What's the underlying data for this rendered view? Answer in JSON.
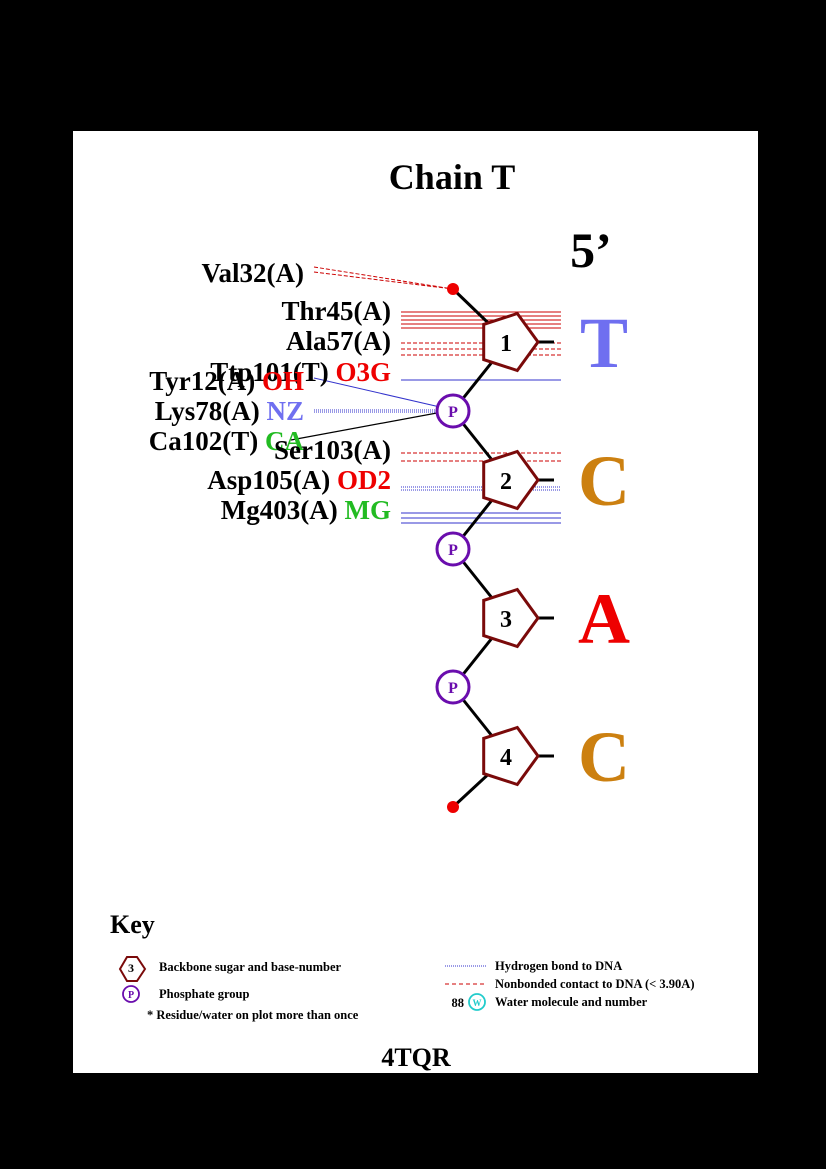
{
  "title": "Chain T",
  "end_label": "5’",
  "footer": "4TQR",
  "colors": {
    "sugar": "#7a0a0a",
    "phosphate": "#6a0dad",
    "hbond": "#3333cc",
    "nonbonded": "#cc0000",
    "terminal": "#ee0000",
    "base_T": "#6f6ff0",
    "base_C": "#cc8010",
    "base_A": "#ee0000",
    "atom_red": "#ee0000",
    "atom_blue": "#6f6ff0",
    "atom_green": "#22bb22",
    "water": "#22cccc"
  },
  "nucleotides": [
    {
      "number": "1",
      "base": "T"
    },
    {
      "number": "2",
      "base": "C"
    },
    {
      "number": "3",
      "base": "A"
    },
    {
      "number": "4",
      "base": "C"
    }
  ],
  "phosphate_label": "P",
  "interactions": [
    {
      "residue": "Val32(A)",
      "atom": "",
      "type": "nonbonded"
    },
    {
      "residue": "Thr45(A)",
      "atom": "",
      "type": "nonbonded"
    },
    {
      "residue": "Ala57(A)",
      "atom": "",
      "type": "nonbonded"
    },
    {
      "residue": "Ttp101(T)",
      "atom": "O3G",
      "atom_color": "red",
      "type": "hbond"
    },
    {
      "residue": "Tyr12(A)",
      "atom": "OH",
      "atom_color": "red",
      "type": "hbond"
    },
    {
      "residue": "Lys78(A)",
      "atom": "NZ",
      "atom_color": "blue",
      "type": "hbond"
    },
    {
      "residue": "Ca102(T)",
      "atom": "CA",
      "atom_color": "green",
      "type": "hbond"
    },
    {
      "residue": "Ser103(A)",
      "atom": "",
      "type": "nonbonded"
    },
    {
      "residue": "Asp105(A)",
      "atom": "OD2",
      "atom_color": "red",
      "type": "hbond"
    },
    {
      "residue": "Mg403(A)",
      "atom": "MG",
      "atom_color": "green",
      "type": "hbond"
    }
  ],
  "key": {
    "title": "Key",
    "sugar_example": "3",
    "sugar_text": "Backbone sugar and base-number",
    "phosphate_example": "P",
    "phosphate_text": "Phosphate group",
    "star_text": "* Residue/water on plot more than once",
    "hbond_text": "Hydrogen bond to DNA",
    "nonbonded_text": "Nonbonded contact to DNA (< 3.90A)",
    "water_number": "88",
    "water_symbol": "W",
    "water_text": "Water molecule and number"
  }
}
